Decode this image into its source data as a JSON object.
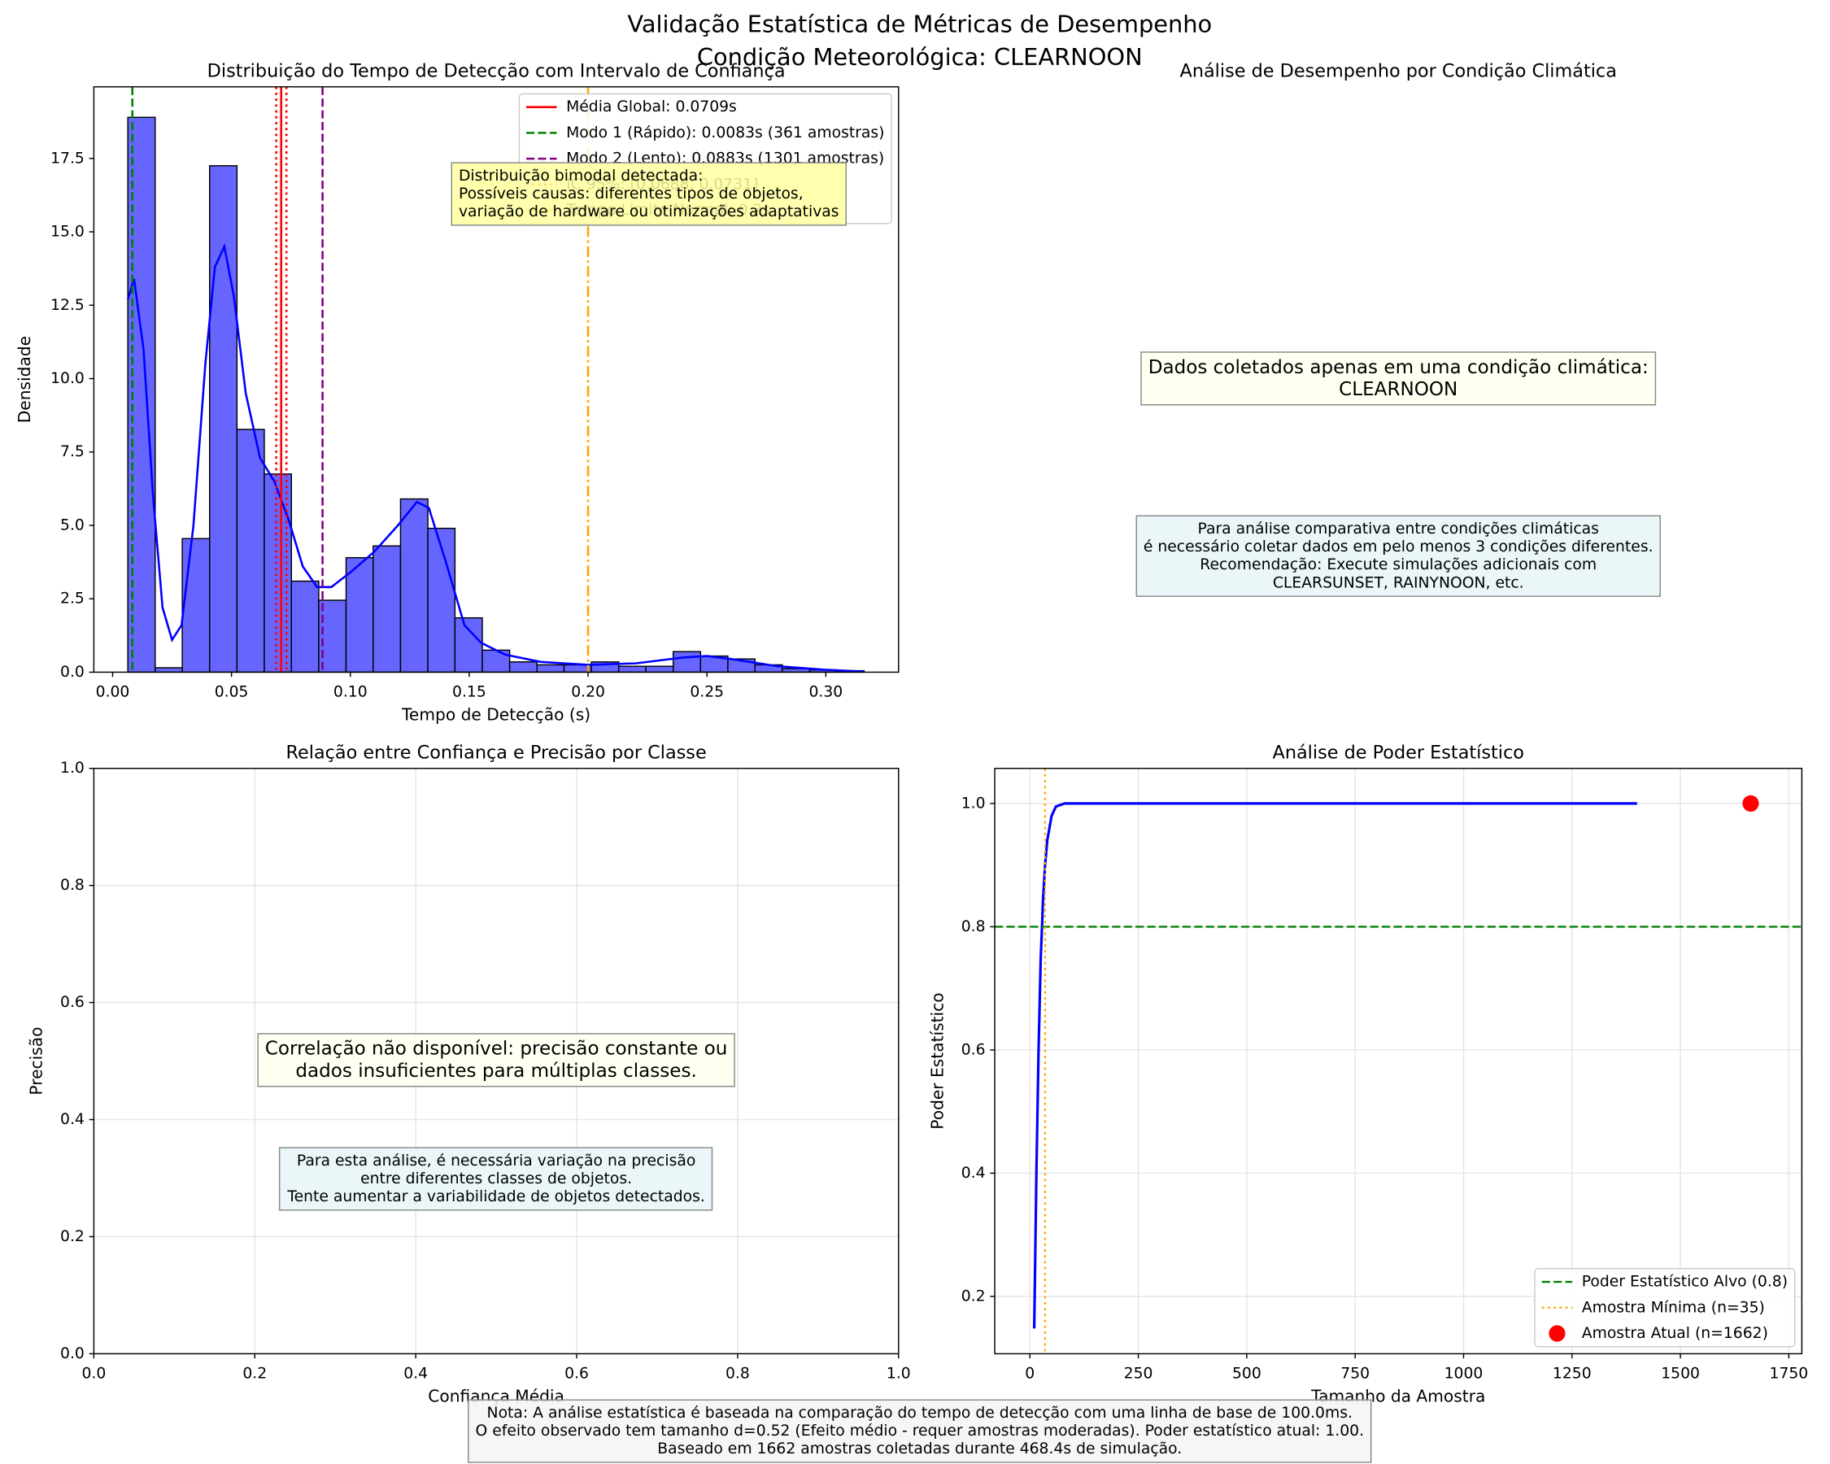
{
  "title": [
    "Validação Estatística de Métricas de Desempenho",
    "Condição Meteorológica: CLEARNOON"
  ],
  "note": [
    "Nota: A análise estatística é baseada na comparação do tempo de detecção com uma linha de base de 100.0ms.",
    "O efeito observado tem tamanho d=0.52 (Efeito médio - requer amostras moderadas). Poder estatístico atual: 1.00.",
    "Baseado em 1662 amostras coletadas durante 468.4s de simulação."
  ],
  "chart_data": [
    {
      "type": "histogram",
      "title": "Distribuição do Tempo de Detecção com Intervalo de Confiança",
      "xlabel": "Tempo de Detecção (s)",
      "ylabel": "Densidade",
      "bins": [
        0.0064,
        0.0179,
        0.0293,
        0.0408,
        0.0523,
        0.0638,
        0.0752,
        0.0867,
        0.0982,
        0.1096,
        0.1211,
        0.1326,
        0.144,
        0.1555,
        0.167,
        0.1785,
        0.1899,
        0.2014,
        0.2129,
        0.2243,
        0.2358,
        0.2473,
        0.2588,
        0.2702,
        0.2817,
        0.2932,
        0.3046,
        0.3161
      ],
      "values": [
        18.9,
        0.15,
        4.55,
        17.25,
        8.27,
        6.75,
        3.1,
        2.45,
        3.9,
        4.3,
        5.9,
        4.9,
        1.85,
        0.75,
        0.35,
        0.25,
        0.25,
        0.35,
        0.2,
        0.2,
        0.7,
        0.55,
        0.45,
        0.25,
        0.12,
        0.08,
        0.05
      ],
      "color": "#6666ff",
      "kde": {
        "color": "blue",
        "x": [
          0.0064,
          0.009,
          0.013,
          0.017,
          0.021,
          0.025,
          0.029,
          0.034,
          0.039,
          0.043,
          0.047,
          0.051,
          0.056,
          0.062,
          0.068,
          0.074,
          0.08,
          0.086,
          0.092,
          0.1,
          0.11,
          0.12,
          0.128,
          0.133,
          0.14,
          0.148,
          0.155,
          0.165,
          0.18,
          0.2,
          0.22,
          0.24,
          0.25,
          0.26,
          0.28,
          0.3,
          0.316
        ],
        "y": [
          12.7,
          13.4,
          11,
          6,
          2.2,
          1.1,
          1.6,
          5,
          10.5,
          13.8,
          14.5,
          12.8,
          9.5,
          7.3,
          6.5,
          5.2,
          3.6,
          2.9,
          2.9,
          3.4,
          4.1,
          5,
          5.8,
          5.6,
          3.8,
          1.6,
          1.0,
          0.6,
          0.35,
          0.25,
          0.3,
          0.5,
          0.55,
          0.45,
          0.2,
          0.08,
          0.02
        ]
      },
      "lines": [
        {
          "name": "Média Global: 0.0709s",
          "values": [
            0.0709
          ],
          "color": "red",
          "style": "solid"
        },
        {
          "name": "Modo 1 (Rápido): 0.0083s (361 amostras)",
          "values": [
            0.0083
          ],
          "color": "green",
          "style": "dashed"
        },
        {
          "name": "Modo 2 (Lento): 0.0883s (1301 amostras)",
          "values": [
            0.0883
          ],
          "color": "purple",
          "style": "dashed"
        },
        {
          "name": "IC 95%: [0.0688, 0.0731]",
          "values": [
            0.0688,
            0.0731
          ],
          "color": "red",
          "style": "dotted"
        },
        {
          "name": "Tempo Limite Normal: 0.2s",
          "values": [
            0.2
          ],
          "color": "orange",
          "style": "dashdot"
        }
      ],
      "legend": "upper right",
      "annotation": [
        "Distribuição bimodal detectada:",
        "Possíveis causas: diferentes tipos de objetos,",
        "variação de hardware ou otimizações adaptativas"
      ],
      "xlim": [
        -0.0079,
        0.3306
      ],
      "ylim": [
        0,
        19.94
      ],
      "xticks": [
        {
          "value": 0,
          "label": "0.00"
        },
        0.05,
        {
          "value": 0.1,
          "label": "0.10"
        },
        0.15,
        {
          "value": 0.2,
          "label": "0.20"
        },
        0.25,
        {
          "value": 0.3,
          "label": "0.30"
        }
      ],
      "yticks": [
        {
          "value": 0,
          "label": "0.0"
        },
        2.5,
        {
          "value": 5,
          "label": "5.0"
        },
        7.5,
        {
          "value": 10,
          "label": "10.0"
        },
        12.5,
        {
          "value": 15,
          "label": "15.0"
        },
        17.5
      ],
      "grid": false
    },
    {
      "type": "text",
      "title": "Análise de Desempenho por Condição Climática",
      "boxes": [
        {
          "lines": [
            "Dados coletados apenas em uma condição climática:",
            "CLEARNOON"
          ],
          "color": "#fffff0"
        },
        {
          "lines": [
            "Para análise comparativa entre condições climáticas",
            "é necessário coletar dados em pelo menos 3 condições diferentes.",
            "Recomendação: Execute simulações adicionais com",
            "CLEARSUNSET, RAINYNOON, etc."
          ],
          "color": "#e6f4f7"
        }
      ]
    },
    {
      "type": "scatter",
      "title": "Relação entre Confiança e Precisão por Classe",
      "xlabel": "Confiança Média",
      "ylabel": "Precisão",
      "boxes": [
        {
          "lines": [
            "Correlação não disponível: precisão constante ou",
            "dados insuficientes para múltiplas classes."
          ],
          "color": "#fffff0"
        },
        {
          "lines": [
            "Para esta análise, é necessária variação na precisão",
            "entre diferentes classes de objetos.",
            "Tente aumentar a variabilidade de objetos detectados."
          ],
          "color": "#e6f4f7"
        }
      ],
      "xlim": [
        0,
        1
      ],
      "ylim": [
        0,
        1
      ],
      "xticks": [
        {
          "value": 0,
          "label": "0.0"
        },
        0.2,
        0.4,
        0.6,
        0.8,
        {
          "value": 1,
          "label": "1.0"
        }
      ],
      "yticks": [
        {
          "value": 0,
          "label": "0.0"
        },
        0.2,
        0.4,
        0.6,
        0.8,
        {
          "value": 1,
          "label": "1.0"
        }
      ],
      "grid": true
    },
    {
      "type": "line",
      "title": "Análise de Poder Estatístico",
      "xlabel": "Tamanho da Amostra",
      "ylabel": "Poder Estatístico",
      "series": [
        {
          "color": "blue",
          "x": [
            10,
            12,
            15,
            18,
            20,
            22,
            25,
            28,
            30,
            35,
            40,
            50,
            60,
            80,
            100,
            1400
          ],
          "values": [
            0.148,
            0.25,
            0.4,
            0.52,
            0.6,
            0.66,
            0.75,
            0.8,
            0.84,
            0.9,
            0.94,
            0.98,
            0.995,
            1.0,
            1.0,
            1.0
          ]
        }
      ],
      "reference_lines": [
        {
          "name": "Poder Estatístico Alvo (0.8)",
          "axis": "y",
          "value": 0.8,
          "color": "green",
          "style": "dashed"
        },
        {
          "name": "Amostra Mínima (n=35)",
          "axis": "x",
          "value": 35,
          "color": "orange",
          "style": "dotted"
        }
      ],
      "points": [
        {
          "name": "Amostra Atual (n=1662)",
          "x": 1662,
          "y": 1.0,
          "color": "red"
        }
      ],
      "legend": "lower right",
      "xlim": [
        -81,
        1780
      ],
      "ylim": [
        0.107,
        1.057
      ],
      "xticks": [
        0,
        250,
        500,
        750,
        1000,
        1250,
        1500,
        1750
      ],
      "yticks": [
        0.2,
        0.4,
        0.6,
        0.8,
        {
          "value": 1,
          "label": "1.0"
        }
      ],
      "grid": true
    }
  ]
}
